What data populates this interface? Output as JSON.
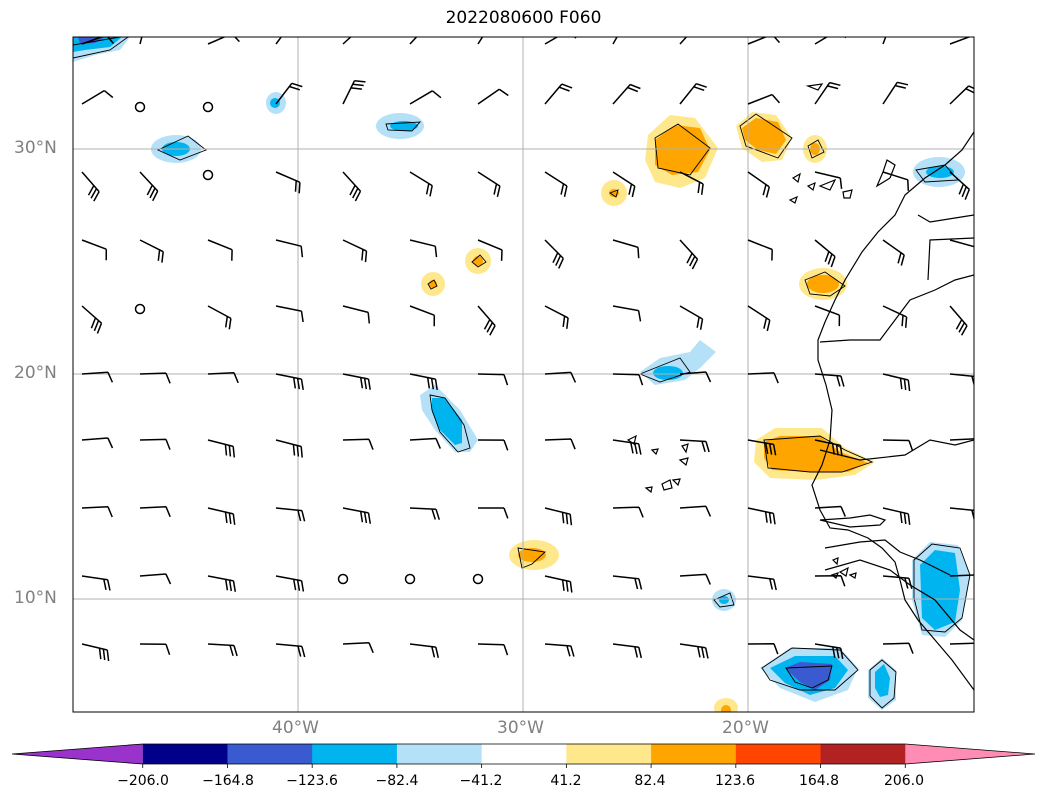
{
  "title": "2022080600 F060",
  "lat_labels": [
    "30°N",
    "20°N",
    "10°N"
  ],
  "lon_labels": [
    "40°W",
    "30°W",
    "20°W"
  ],
  "colorbar": {
    "ticks": [
      "−206.0",
      "−164.8",
      "−123.6",
      "−82.4",
      "−41.2",
      "41.2",
      "82.4",
      "123.6",
      "164.8",
      "206.0"
    ],
    "colors": [
      "#9933cc",
      "#00008b",
      "#3a5bd0",
      "#00b4f0",
      "#b4e0f8",
      "#ffffff",
      "#ffe88c",
      "#ffa500",
      "#ff4500",
      "#b22222",
      "#ff8cb4"
    ]
  }
}
